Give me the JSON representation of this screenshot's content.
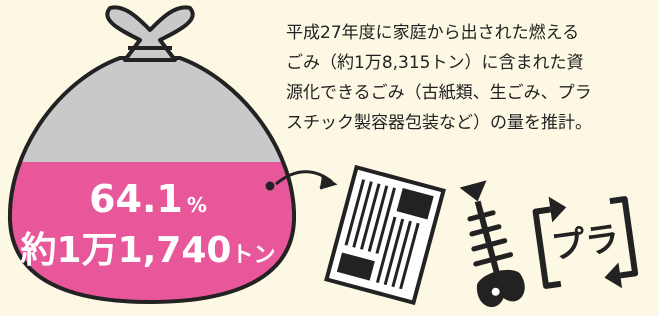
{
  "bag": {
    "percent": "64.1",
    "percent_unit": "%",
    "amount": "約1万1,740",
    "amount_unit": "トン"
  },
  "description": [
    "平成27年度に家庭から出された燃える",
    "ごみ（約1万8,315トン）に含まれた資",
    "源化できるごみ（古紙類、生ごみ、プラ",
    "スチック製容器包装など）の量を推計。"
  ],
  "icons": {
    "plastic_label": "プラ"
  }
}
